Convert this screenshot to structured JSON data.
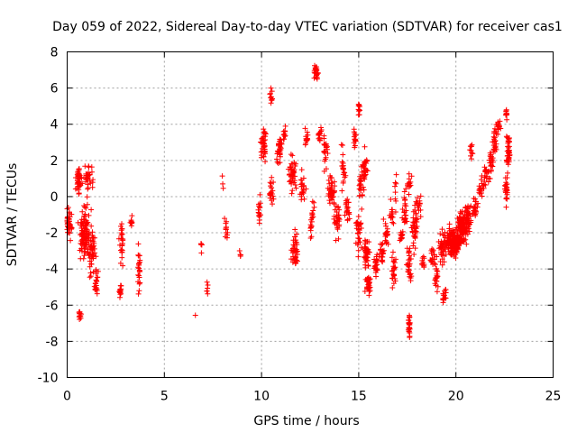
{
  "chart_data": {
    "type": "scatter",
    "title": "Day 059 of 2022, Sidereal Day-to-day VTEC variation (SDTVAR) for receiver cas1",
    "xlabel": "GPS time / hours",
    "ylabel": "SDTVAR / TECUs",
    "xlim": [
      0,
      25
    ],
    "ylim": [
      -10,
      8
    ],
    "xticks": [
      0,
      5,
      10,
      15,
      20,
      25
    ],
    "yticks": [
      -10,
      -8,
      -6,
      -4,
      -2,
      0,
      2,
      4,
      6,
      8
    ],
    "grid": true,
    "marker": "+",
    "color": "#ff0000",
    "series": [
      {
        "name": "SDTVAR",
        "clusters": [
          {
            "x": 0.1,
            "y": -1.5,
            "sx": 0.15,
            "sy": 0.8,
            "n": 40
          },
          {
            "x": 0.6,
            "y": 1.0,
            "sx": 0.15,
            "sy": 0.7,
            "n": 40
          },
          {
            "x": 0.9,
            "y": -2.0,
            "sx": 0.25,
            "sy": 1.3,
            "n": 100
          },
          {
            "x": 0.65,
            "y": -6.6,
            "sx": 0.05,
            "sy": 0.3,
            "n": 15
          },
          {
            "x": 1.3,
            "y": -2.8,
            "sx": 0.2,
            "sy": 1.5,
            "n": 50
          },
          {
            "x": 1.5,
            "y": -4.8,
            "sx": 0.1,
            "sy": 0.7,
            "n": 20
          },
          {
            "x": 1.1,
            "y": 1.0,
            "sx": 0.2,
            "sy": 0.7,
            "n": 30
          },
          {
            "x": 2.8,
            "y": -2.6,
            "sx": 0.08,
            "sy": 1.0,
            "n": 25
          },
          {
            "x": 2.75,
            "y": -5.2,
            "sx": 0.06,
            "sy": 0.4,
            "n": 15
          },
          {
            "x": 3.3,
            "y": -1.4,
            "sx": 0.05,
            "sy": 0.3,
            "n": 8
          },
          {
            "x": 3.7,
            "y": -3.8,
            "sx": 0.05,
            "sy": 1.2,
            "n": 22
          },
          {
            "x": 6.6,
            "y": -6.6,
            "sx": 0.02,
            "sy": 0.05,
            "n": 1
          },
          {
            "x": 6.9,
            "y": -2.6,
            "sx": 0.05,
            "sy": 0.3,
            "n": 5
          },
          {
            "x": 7.2,
            "y": -5.0,
            "sx": 0.05,
            "sy": 0.5,
            "n": 6
          },
          {
            "x": 8.0,
            "y": 0.8,
            "sx": 0.05,
            "sy": 0.4,
            "n": 3
          },
          {
            "x": 8.2,
            "y": -1.8,
            "sx": 0.08,
            "sy": 0.9,
            "n": 12
          },
          {
            "x": 8.9,
            "y": -3.3,
            "sx": 0.05,
            "sy": 0.3,
            "n": 4
          },
          {
            "x": 9.9,
            "y": -0.8,
            "sx": 0.1,
            "sy": 0.8,
            "n": 15
          },
          {
            "x": 10.1,
            "y": 2.8,
            "sx": 0.12,
            "sy": 0.9,
            "n": 40
          },
          {
            "x": 10.5,
            "y": 5.6,
            "sx": 0.05,
            "sy": 0.6,
            "n": 10
          },
          {
            "x": 10.5,
            "y": 0.5,
            "sx": 0.15,
            "sy": 1.0,
            "n": 20
          },
          {
            "x": 10.9,
            "y": 2.5,
            "sx": 0.12,
            "sy": 1.0,
            "n": 30
          },
          {
            "x": 11.2,
            "y": 3.5,
            "sx": 0.1,
            "sy": 0.6,
            "n": 10
          },
          {
            "x": 11.6,
            "y": 1.3,
            "sx": 0.2,
            "sy": 1.0,
            "n": 40
          },
          {
            "x": 11.7,
            "y": -3.0,
            "sx": 0.15,
            "sy": 1.0,
            "n": 40
          },
          {
            "x": 12.1,
            "y": 0.3,
            "sx": 0.15,
            "sy": 0.8,
            "n": 25
          },
          {
            "x": 12.3,
            "y": 3.2,
            "sx": 0.12,
            "sy": 0.5,
            "n": 15
          },
          {
            "x": 12.6,
            "y": -1.2,
            "sx": 0.12,
            "sy": 0.9,
            "n": 20
          },
          {
            "x": 12.8,
            "y": 6.8,
            "sx": 0.08,
            "sy": 0.4,
            "n": 25
          },
          {
            "x": 13.0,
            "y": 3.5,
            "sx": 0.1,
            "sy": 0.6,
            "n": 15
          },
          {
            "x": 13.3,
            "y": 2.6,
            "sx": 0.12,
            "sy": 0.8,
            "n": 20
          },
          {
            "x": 13.6,
            "y": 0.3,
            "sx": 0.2,
            "sy": 0.8,
            "n": 40
          },
          {
            "x": 13.9,
            "y": -1.4,
            "sx": 0.15,
            "sy": 0.8,
            "n": 30
          },
          {
            "x": 14.2,
            "y": 1.3,
            "sx": 0.12,
            "sy": 1.1,
            "n": 20
          },
          {
            "x": 14.4,
            "y": -0.8,
            "sx": 0.12,
            "sy": 0.7,
            "n": 20
          },
          {
            "x": 14.8,
            "y": 3.2,
            "sx": 0.08,
            "sy": 0.4,
            "n": 15
          },
          {
            "x": 15.0,
            "y": 4.8,
            "sx": 0.05,
            "sy": 0.3,
            "n": 10
          },
          {
            "x": 15.1,
            "y": 0.6,
            "sx": 0.1,
            "sy": 1.0,
            "n": 20
          },
          {
            "x": 15.3,
            "y": 1.5,
            "sx": 0.15,
            "sy": 1.2,
            "n": 30
          },
          {
            "x": 15.0,
            "y": -2.0,
            "sx": 0.15,
            "sy": 0.8,
            "n": 30
          },
          {
            "x": 15.4,
            "y": -3.2,
            "sx": 0.15,
            "sy": 0.8,
            "n": 40
          },
          {
            "x": 15.5,
            "y": -4.8,
            "sx": 0.15,
            "sy": 0.5,
            "n": 30
          },
          {
            "x": 15.9,
            "y": -3.8,
            "sx": 0.12,
            "sy": 0.7,
            "n": 25
          },
          {
            "x": 16.2,
            "y": -3.0,
            "sx": 0.12,
            "sy": 0.6,
            "n": 20
          },
          {
            "x": 16.4,
            "y": -2.0,
            "sx": 0.12,
            "sy": 0.7,
            "n": 20
          },
          {
            "x": 16.7,
            "y": -1.0,
            "sx": 0.1,
            "sy": 0.6,
            "n": 15
          },
          {
            "x": 16.9,
            "y": 0.5,
            "sx": 0.05,
            "sy": 0.8,
            "n": 8
          },
          {
            "x": 16.8,
            "y": -4.0,
            "sx": 0.1,
            "sy": 1.2,
            "n": 25
          },
          {
            "x": 17.2,
            "y": -2.2,
            "sx": 0.1,
            "sy": 0.3,
            "n": 15
          },
          {
            "x": 17.4,
            "y": -0.8,
            "sx": 0.15,
            "sy": 0.9,
            "n": 25
          },
          {
            "x": 17.6,
            "y": 0.7,
            "sx": 0.1,
            "sy": 0.5,
            "n": 15
          },
          {
            "x": 17.6,
            "y": -3.8,
            "sx": 0.1,
            "sy": 1.2,
            "n": 25
          },
          {
            "x": 17.6,
            "y": -7.2,
            "sx": 0.06,
            "sy": 0.8,
            "n": 25
          },
          {
            "x": 17.9,
            "y": -1.8,
            "sx": 0.15,
            "sy": 1.0,
            "n": 40
          },
          {
            "x": 18.1,
            "y": -0.5,
            "sx": 0.1,
            "sy": 0.5,
            "n": 15
          },
          {
            "x": 18.3,
            "y": -3.6,
            "sx": 0.08,
            "sy": 0.5,
            "n": 10
          },
          {
            "x": 18.8,
            "y": -3.3,
            "sx": 0.15,
            "sy": 0.5,
            "n": 20
          },
          {
            "x": 19.0,
            "y": -4.5,
            "sx": 0.1,
            "sy": 0.8,
            "n": 20
          },
          {
            "x": 19.3,
            "y": -2.8,
            "sx": 0.2,
            "sy": 0.8,
            "n": 40
          },
          {
            "x": 19.4,
            "y": -5.5,
            "sx": 0.1,
            "sy": 0.4,
            "n": 15
          },
          {
            "x": 19.7,
            "y": -2.5,
            "sx": 0.2,
            "sy": 0.7,
            "n": 80
          },
          {
            "x": 20.0,
            "y": -2.6,
            "sx": 0.2,
            "sy": 0.7,
            "n": 100
          },
          {
            "x": 20.3,
            "y": -1.8,
            "sx": 0.2,
            "sy": 0.8,
            "n": 100
          },
          {
            "x": 20.6,
            "y": -1.2,
            "sx": 0.15,
            "sy": 0.8,
            "n": 50
          },
          {
            "x": 20.8,
            "y": 2.5,
            "sx": 0.08,
            "sy": 0.6,
            "n": 10
          },
          {
            "x": 21.0,
            "y": -0.6,
            "sx": 0.15,
            "sy": 0.6,
            "n": 25
          },
          {
            "x": 21.3,
            "y": 0.5,
            "sx": 0.15,
            "sy": 0.5,
            "n": 20
          },
          {
            "x": 21.6,
            "y": 1.2,
            "sx": 0.15,
            "sy": 0.7,
            "n": 20
          },
          {
            "x": 21.8,
            "y": 2.0,
            "sx": 0.12,
            "sy": 0.6,
            "n": 20
          },
          {
            "x": 22.0,
            "y": 3.0,
            "sx": 0.12,
            "sy": 0.7,
            "n": 25
          },
          {
            "x": 22.2,
            "y": 3.8,
            "sx": 0.08,
            "sy": 0.3,
            "n": 15
          },
          {
            "x": 22.6,
            "y": 0.3,
            "sx": 0.08,
            "sy": 0.6,
            "n": 25
          },
          {
            "x": 22.7,
            "y": 2.5,
            "sx": 0.1,
            "sy": 1.0,
            "n": 40
          },
          {
            "x": 22.6,
            "y": 4.5,
            "sx": 0.05,
            "sy": 0.4,
            "n": 10
          }
        ]
      }
    ]
  }
}
